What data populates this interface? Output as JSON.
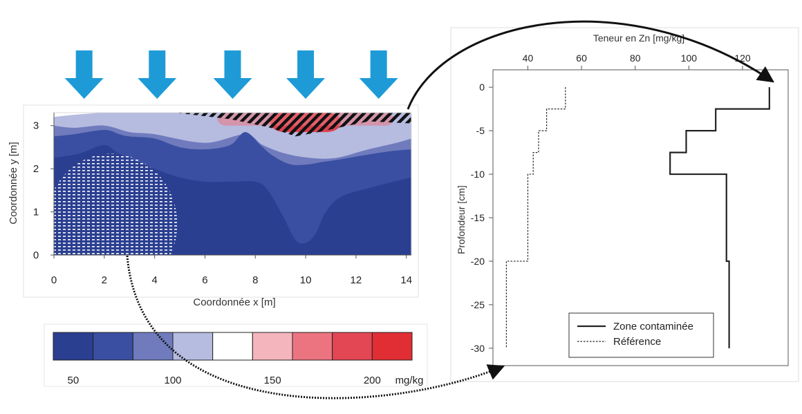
{
  "colors": {
    "map_levels": [
      "#2b3f91",
      "#3a4fa1",
      "#6f7bbd",
      "#b6bbe0",
      "#ffffff",
      "#f4b5bc",
      "#ec7480",
      "#e34753",
      "#e02e34"
    ],
    "arrow_fill": "#1e9bd7",
    "hatch": "#111111",
    "curve": "#111111"
  },
  "chart_data": [
    {
      "type": "heatmap",
      "xlabel": "Coordonnée x [m]",
      "ylabel": "Coordonnée y [m]",
      "xlim": [
        0,
        14.2
      ],
      "ylim": [
        0,
        3.3
      ],
      "xticks": [
        0,
        2,
        4,
        6,
        8,
        10,
        12,
        14
      ],
      "yticks": [
        0,
        1,
        2,
        3
      ],
      "input_arrows_x": [
        1.2,
        4.1,
        7.1,
        10.0,
        12.9
      ],
      "contour_boundaries": [
        {
          "name": "b1",
          "x": [
            0,
            0.8,
            2,
            3,
            4,
            6,
            7.6,
            8.3,
            9.2,
            10.2,
            11.2,
            12.5,
            13.6,
            14.2
          ],
          "y": [
            3.2,
            3.25,
            3.3,
            3.3,
            3.3,
            3.3,
            3.3,
            3.3,
            3.3,
            3.3,
            3.3,
            3.3,
            3.3,
            3.3
          ]
        },
        {
          "name": "b2",
          "x": [
            0,
            0.8,
            2,
            3,
            4,
            6,
            7.6,
            8.3,
            9.2,
            10.2,
            11.2,
            12.5,
            13.6,
            14.2
          ],
          "y": [
            3.1,
            3.15,
            3.3,
            3.25,
            3.2,
            3.05,
            3.15,
            3.05,
            2.9,
            2.88,
            2.95,
            3.0,
            3.05,
            3.05
          ]
        },
        {
          "name": "b3",
          "x": [
            0,
            0.8,
            2,
            3,
            4,
            6,
            7.6,
            8.3,
            9.2,
            10.2,
            11.2,
            12.5,
            13.6,
            14.2
          ],
          "y": [
            3.0,
            2.95,
            3.0,
            2.85,
            2.8,
            2.6,
            2.8,
            2.55,
            2.35,
            2.25,
            2.25,
            2.45,
            2.6,
            2.7
          ]
        },
        {
          "name": "b4",
          "x": [
            0,
            0.8,
            2,
            2.6,
            3,
            4,
            5,
            6,
            7,
            7.6,
            8.2,
            8.7,
            9.4,
            10.1,
            10.6,
            11.2,
            12.2,
            13.3,
            14.2
          ],
          "y": [
            2.75,
            2.8,
            2.9,
            2.8,
            2.75,
            2.7,
            2.5,
            2.45,
            2.55,
            2.85,
            2.55,
            2.3,
            2.1,
            2.1,
            2.15,
            2.2,
            2.3,
            2.4,
            2.45
          ]
        },
        {
          "name": "b5",
          "x": [
            0,
            1,
            2,
            2.6,
            4,
            5,
            6,
            7,
            8,
            8.5,
            9.1,
            9.6,
            10.0,
            10.4,
            10.8,
            11.4,
            12.5,
            13.5,
            14.2
          ],
          "y": [
            2.25,
            2.35,
            2.55,
            2.35,
            2.0,
            1.8,
            1.7,
            1.7,
            1.7,
            1.5,
            0.9,
            0.35,
            0.28,
            0.5,
            1.0,
            1.35,
            1.55,
            1.7,
            1.8
          ]
        }
      ],
      "hatched_zones": [
        {
          "name": "contaminated",
          "x_range": [
            4.8,
            14.2
          ],
          "y_range": [
            2.6,
            3.3
          ]
        },
        {
          "name": "reference",
          "x_range": [
            0,
            4.9
          ],
          "y_range": [
            0,
            1.6
          ]
        }
      ]
    },
    {
      "type": "line",
      "title": "Teneur en Zn [mg/kg]",
      "ylabel": "Profondeur [cm]",
      "xlim": [
        27,
        137
      ],
      "ylim": [
        -32,
        2
      ],
      "xticks": [
        40,
        60,
        80,
        100,
        120
      ],
      "yticks": [
        0,
        -5,
        -10,
        -15,
        -20,
        -25,
        -30
      ],
      "legend_position": "bottom-right",
      "series": [
        {
          "name": "Zone contaminée",
          "style": "solid",
          "x": [
            130,
            130,
            110,
            110,
            99,
            99,
            93,
            93,
            114,
            114,
            115,
            115
          ],
          "y": [
            0,
            -2.5,
            -2.5,
            -5,
            -5,
            -7.5,
            -7.5,
            -10,
            -10,
            -20,
            -20,
            -30
          ]
        },
        {
          "name": "Référence",
          "style": "dotted",
          "x": [
            54,
            54,
            47,
            47,
            44,
            44,
            42,
            42,
            40,
            40,
            32,
            32
          ],
          "y": [
            0,
            -2.5,
            -2.5,
            -5,
            -5,
            -7.5,
            -7.5,
            -10,
            -10,
            -20,
            -20,
            -30
          ]
        }
      ]
    }
  ],
  "colorbar": {
    "tick_labels": [
      "50",
      "100",
      "150",
      "200"
    ],
    "tick_values": [
      50,
      100,
      150,
      200
    ],
    "range": [
      40,
      220
    ],
    "step": 20,
    "unit": "mg/kg"
  }
}
